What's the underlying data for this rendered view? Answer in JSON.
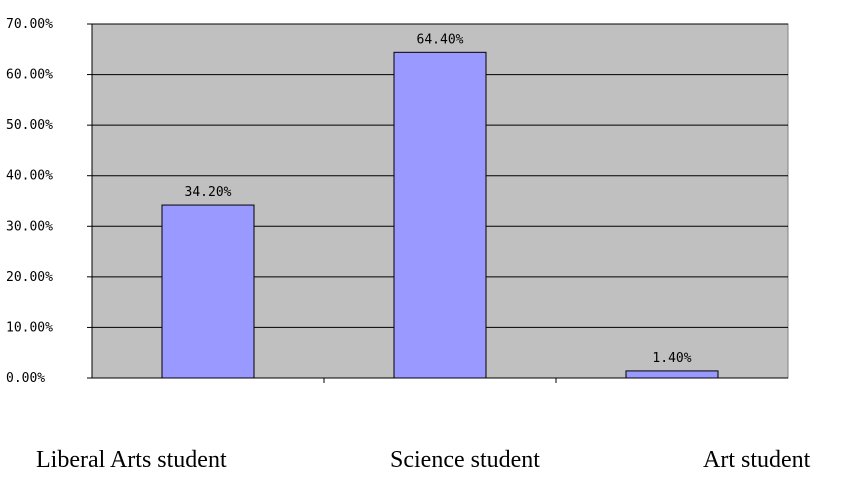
{
  "chart_data": {
    "type": "bar",
    "categories": [
      "Liberal Arts student",
      "Science student",
      "Art student"
    ],
    "values": [
      34.2,
      64.4,
      1.4
    ],
    "value_labels": [
      "34.20%",
      "64.40%",
      "1.40%"
    ],
    "y_tick_labels": [
      "0.00%",
      "10.00%",
      "20.00%",
      "30.00%",
      "40.00%",
      "50.00%",
      "60.00%",
      "70.00%"
    ],
    "ylim": [
      0,
      70
    ],
    "title": "",
    "xlabel": "",
    "ylabel": "",
    "grid": true,
    "legend": "none",
    "colors": {
      "bar": "#9999ff",
      "plot_area": "#c0c0c0",
      "gridline": "#000000"
    }
  }
}
